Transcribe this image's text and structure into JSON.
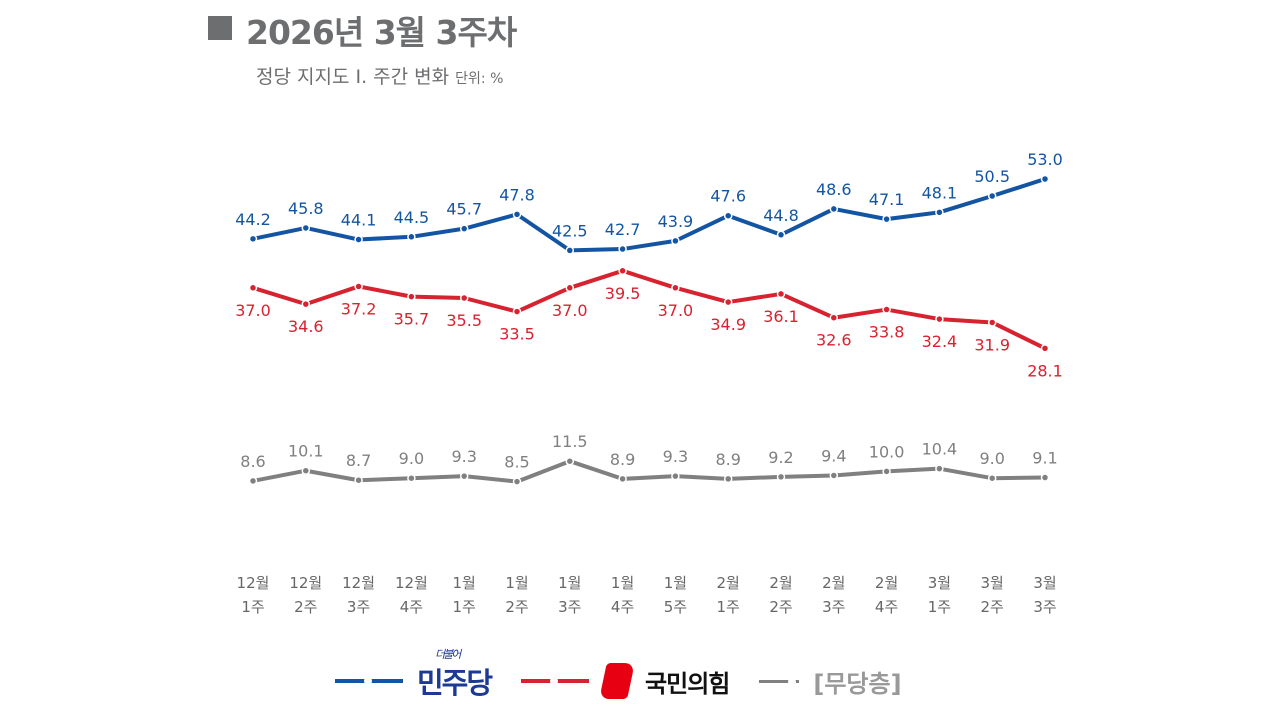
{
  "header": {
    "title": "2026년 3월 3주차",
    "subtitle": "정당 지지도 Ⅰ. 주간 변화",
    "unit": "단위: %"
  },
  "chart_data": {
    "type": "line",
    "title": "2026년 3월 3주차",
    "subtitle": "정당 지지도 Ⅰ. 주간 변화",
    "ylabel": "단위: %",
    "categories": [
      "12월 1주",
      "12월 2주",
      "12월 3주",
      "12월 4주",
      "1월 1주",
      "1월 2주",
      "1월 3주",
      "1월 4주",
      "1월 5주",
      "2월 1주",
      "2월 2주",
      "2월 3주",
      "2월 4주",
      "3월 1주",
      "3월 2주",
      "3월 3주"
    ],
    "grid": false,
    "legend_placement": "bottom",
    "series": [
      {
        "name": "더불어민주당",
        "color": "#1455a3",
        "values": [
          44.2,
          45.8,
          44.1,
          44.5,
          45.7,
          47.8,
          42.5,
          42.7,
          43.9,
          47.6,
          44.8,
          48.6,
          47.1,
          48.1,
          50.5,
          53.0
        ]
      },
      {
        "name": "국민의힘",
        "color": "#d7222f",
        "values": [
          37.0,
          34.6,
          37.2,
          35.7,
          35.5,
          33.5,
          37.0,
          39.5,
          37.0,
          34.9,
          36.1,
          32.6,
          33.8,
          32.4,
          31.9,
          28.1
        ]
      },
      {
        "name": "[무당층]",
        "color": "#808080",
        "values": [
          8.6,
          10.1,
          8.7,
          9.0,
          9.3,
          8.5,
          11.5,
          8.9,
          9.3,
          8.9,
          9.2,
          9.4,
          10.0,
          10.4,
          9.0,
          9.1
        ]
      }
    ]
  },
  "legend": {
    "dp_small": "더불어",
    "dp": "민주당",
    "ppp": "국민의힘",
    "ind": "[무당층]"
  }
}
